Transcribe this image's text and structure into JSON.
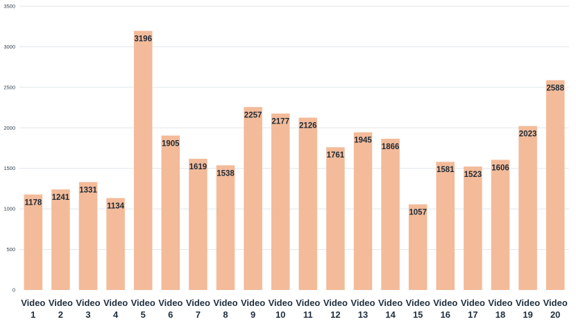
{
  "chart_data": {
    "type": "bar",
    "title": "",
    "xlabel": "",
    "ylabel": "",
    "categories": [
      "Video 1",
      "Video 2",
      "Video 3",
      "Video 4",
      "Video 5",
      "Video 6",
      "Video 7",
      "Video 8",
      "Video 9",
      "Video 10",
      "Video 11",
      "Video 12",
      "Video 13",
      "Video 14",
      "Video 15",
      "Video 16",
      "Video 17",
      "Video 18",
      "Video 19",
      "Video 20"
    ],
    "values": [
      1178,
      1241,
      1331,
      1134,
      3196,
      1905,
      1619,
      1538,
      2257,
      2177,
      2126,
      1761,
      1945,
      1866,
      1057,
      1581,
      1523,
      1606,
      2023,
      2588
    ],
    "ylim": [
      0,
      3500
    ],
    "yticks": [
      0,
      500,
      1000,
      1500,
      2000,
      2500,
      3000,
      3500
    ],
    "grid": true,
    "legend": "none",
    "data_labels": true,
    "colors": {
      "bar": "#f3bb9a",
      "grid": "#dfe6ec",
      "text": "#1f2e3d"
    }
  }
}
